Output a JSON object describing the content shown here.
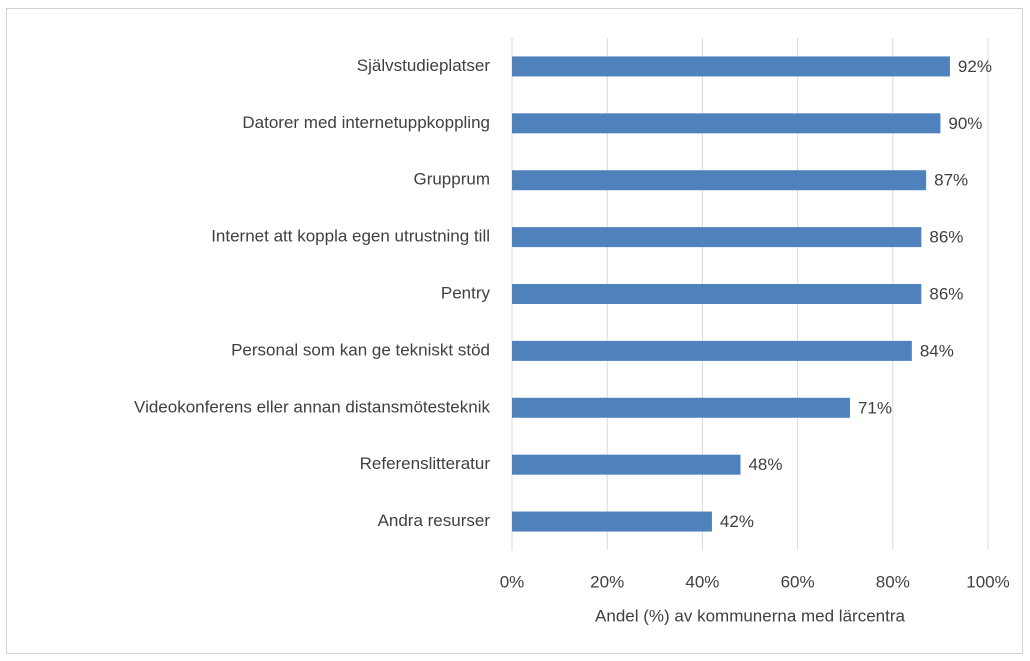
{
  "chart_data": {
    "type": "bar",
    "orientation": "horizontal",
    "x_label": "Andel (%) av kommunerna med lärcentra",
    "categories": [
      "Självstudieplatser",
      "Datorer med internetuppkoppling",
      "Grupprum",
      "Internet att koppla egen utrustning till",
      "Pentry",
      "Personal som kan ge tekniskt stöd",
      "Videokonferens eller annan distansmötesteknik",
      "Referenslitteratur",
      "Andra resurser"
    ],
    "values": [
      92,
      90,
      87,
      86,
      86,
      84,
      71,
      48,
      42
    ],
    "value_labels": [
      "92%",
      "90%",
      "87%",
      "86%",
      "86%",
      "84%",
      "71%",
      "48%",
      "42%"
    ],
    "color": "#4f81bd",
    "xlim": [
      0,
      100
    ],
    "xticks": [
      {
        "value": 0,
        "label": "0%"
      },
      {
        "value": 20,
        "label": "20%"
      },
      {
        "value": 40,
        "label": "40%"
      },
      {
        "value": 60,
        "label": "60%"
      },
      {
        "value": 80,
        "label": "80%"
      },
      {
        "value": 100,
        "label": "100%"
      }
    ],
    "grid": true
  }
}
